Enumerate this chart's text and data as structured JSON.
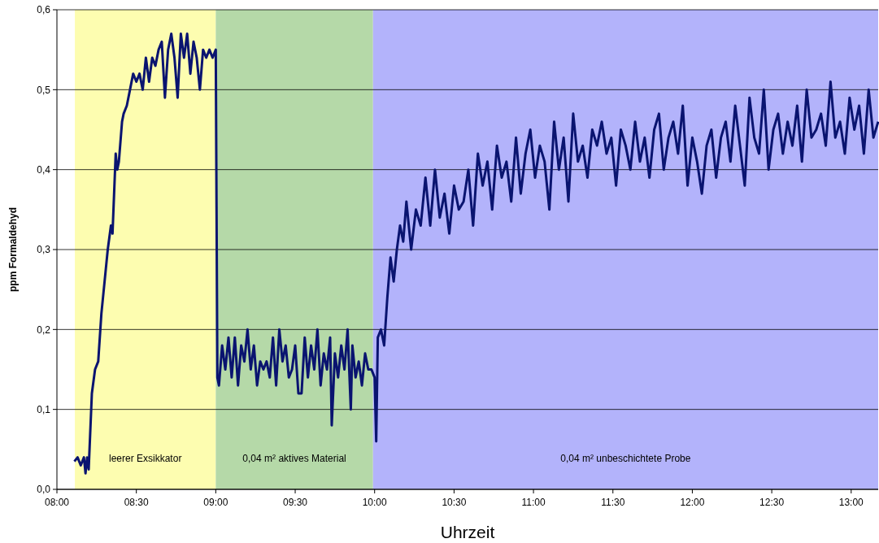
{
  "chart_data": {
    "type": "line",
    "xlabel": "Uhrzeit",
    "ylabel": "ppm Formaldehyd",
    "xlim": [
      8,
      13.17
    ],
    "ylim": [
      0,
      0.6
    ],
    "xticks": [
      {
        "value": 8,
        "label": "08:00"
      },
      {
        "value": 8.5,
        "label": "08:30"
      },
      {
        "value": 9,
        "label": "09:00"
      },
      {
        "value": 9.5,
        "label": "09:30"
      },
      {
        "value": 10,
        "label": "10:00"
      },
      {
        "value": 10.5,
        "label": "10:30"
      },
      {
        "value": 11,
        "label": "11:00"
      },
      {
        "value": 11.5,
        "label": "11:30"
      },
      {
        "value": 12,
        "label": "12:00"
      },
      {
        "value": 12.5,
        "label": "12:30"
      },
      {
        "value": 13,
        "label": "13:00"
      }
    ],
    "yticks": [
      {
        "value": 0,
        "label": "0,0"
      },
      {
        "value": 0.1,
        "label": "0,1"
      },
      {
        "value": 0.2,
        "label": "0,2"
      },
      {
        "value": 0.3,
        "label": "0,3"
      },
      {
        "value": 0.4,
        "label": "0,4"
      },
      {
        "value": 0.5,
        "label": "0,5"
      },
      {
        "value": 0.6,
        "label": "0,6"
      }
    ],
    "grid": "y",
    "bands": [
      {
        "axis": "x",
        "from": 8.113,
        "to": 9.0,
        "label": "leerer Exsikkator",
        "color": "#fdfdb0"
      },
      {
        "axis": "x",
        "from": 9.0,
        "to": 9.99,
        "label": "0,04 m² aktives Material",
        "color": "#b5d9a8"
      },
      {
        "axis": "x",
        "from": 9.99,
        "to": 13.17,
        "label": "0,04 m² unbeschichtete Probe",
        "color": "#b3b3fb"
      }
    ],
    "series": [
      {
        "color": "#0a1470",
        "x": [
          8.11,
          8.13,
          8.15,
          8.17,
          8.18,
          8.19,
          8.2,
          8.22,
          8.24,
          8.26,
          8.28,
          8.3,
          8.32,
          8.34,
          8.35,
          8.37,
          8.38,
          8.39,
          8.41,
          8.42,
          8.44,
          8.46,
          8.48,
          8.5,
          8.52,
          8.54,
          8.56,
          8.58,
          8.6,
          8.62,
          8.64,
          8.66,
          8.68,
          8.7,
          8.72,
          8.74,
          8.76,
          8.78,
          8.8,
          8.82,
          8.84,
          8.86,
          8.88,
          8.9,
          8.92,
          8.94,
          8.96,
          8.98,
          9.0,
          9.01,
          9.02,
          9.04,
          9.06,
          9.08,
          9.1,
          9.12,
          9.14,
          9.16,
          9.18,
          9.2,
          9.22,
          9.24,
          9.26,
          9.28,
          9.3,
          9.32,
          9.34,
          9.36,
          9.38,
          9.4,
          9.42,
          9.44,
          9.46,
          9.48,
          9.5,
          9.52,
          9.54,
          9.56,
          9.58,
          9.6,
          9.62,
          9.64,
          9.66,
          9.68,
          9.7,
          9.72,
          9.73,
          9.75,
          9.77,
          9.79,
          9.81,
          9.83,
          9.85,
          9.86,
          9.88,
          9.9,
          9.92,
          9.94,
          9.96,
          9.98,
          10.0,
          10.01,
          10.02,
          10.04,
          10.06,
          10.08,
          10.1,
          10.12,
          10.14,
          10.16,
          10.18,
          10.2,
          10.23,
          10.26,
          10.29,
          10.32,
          10.35,
          10.38,
          10.41,
          10.44,
          10.47,
          10.5,
          10.53,
          10.56,
          10.59,
          10.62,
          10.65,
          10.68,
          10.71,
          10.74,
          10.77,
          10.8,
          10.83,
          10.86,
          10.89,
          10.92,
          10.95,
          10.98,
          11.01,
          11.04,
          11.07,
          11.1,
          11.13,
          11.16,
          11.19,
          11.22,
          11.25,
          11.28,
          11.31,
          11.34,
          11.37,
          11.4,
          11.43,
          11.46,
          11.49,
          11.52,
          11.55,
          11.58,
          11.61,
          11.64,
          11.67,
          11.7,
          11.73,
          11.76,
          11.79,
          11.82,
          11.85,
          11.88,
          11.91,
          11.94,
          11.97,
          12.0,
          12.03,
          12.06,
          12.09,
          12.12,
          12.15,
          12.18,
          12.21,
          12.24,
          12.27,
          12.3,
          12.33,
          12.36,
          12.39,
          12.42,
          12.45,
          12.48,
          12.51,
          12.54,
          12.57,
          12.6,
          12.63,
          12.66,
          12.69,
          12.72,
          12.75,
          12.78,
          12.81,
          12.84,
          12.87,
          12.9,
          12.93,
          12.96,
          12.99,
          13.02,
          13.05,
          13.08,
          13.11,
          13.14,
          13.17
        ],
        "values": [
          0.035,
          0.04,
          0.03,
          0.04,
          0.02,
          0.04,
          0.025,
          0.12,
          0.15,
          0.16,
          0.22,
          0.26,
          0.3,
          0.33,
          0.32,
          0.42,
          0.4,
          0.41,
          0.46,
          0.47,
          0.48,
          0.5,
          0.52,
          0.51,
          0.52,
          0.5,
          0.54,
          0.51,
          0.54,
          0.53,
          0.55,
          0.56,
          0.49,
          0.55,
          0.57,
          0.54,
          0.49,
          0.57,
          0.54,
          0.57,
          0.52,
          0.56,
          0.54,
          0.5,
          0.55,
          0.54,
          0.55,
          0.54,
          0.55,
          0.14,
          0.13,
          0.18,
          0.15,
          0.19,
          0.14,
          0.19,
          0.13,
          0.18,
          0.16,
          0.2,
          0.15,
          0.18,
          0.13,
          0.16,
          0.15,
          0.16,
          0.14,
          0.19,
          0.13,
          0.2,
          0.16,
          0.18,
          0.14,
          0.15,
          0.18,
          0.12,
          0.12,
          0.19,
          0.14,
          0.18,
          0.15,
          0.2,
          0.13,
          0.17,
          0.15,
          0.19,
          0.08,
          0.17,
          0.14,
          0.18,
          0.15,
          0.2,
          0.1,
          0.18,
          0.14,
          0.16,
          0.13,
          0.17,
          0.15,
          0.15,
          0.14,
          0.06,
          0.19,
          0.2,
          0.18,
          0.24,
          0.29,
          0.26,
          0.3,
          0.33,
          0.31,
          0.36,
          0.3,
          0.35,
          0.33,
          0.39,
          0.33,
          0.4,
          0.34,
          0.37,
          0.32,
          0.38,
          0.35,
          0.36,
          0.4,
          0.33,
          0.42,
          0.38,
          0.41,
          0.35,
          0.43,
          0.39,
          0.41,
          0.36,
          0.44,
          0.37,
          0.42,
          0.45,
          0.39,
          0.43,
          0.41,
          0.35,
          0.46,
          0.4,
          0.44,
          0.36,
          0.47,
          0.41,
          0.43,
          0.39,
          0.45,
          0.43,
          0.46,
          0.42,
          0.44,
          0.38,
          0.45,
          0.43,
          0.4,
          0.46,
          0.41,
          0.44,
          0.39,
          0.45,
          0.47,
          0.4,
          0.44,
          0.46,
          0.42,
          0.48,
          0.38,
          0.44,
          0.41,
          0.37,
          0.43,
          0.45,
          0.39,
          0.44,
          0.46,
          0.41,
          0.48,
          0.43,
          0.38,
          0.49,
          0.44,
          0.42,
          0.5,
          0.4,
          0.45,
          0.47,
          0.42,
          0.46,
          0.43,
          0.48,
          0.41,
          0.5,
          0.44,
          0.45,
          0.47,
          0.43,
          0.51,
          0.44,
          0.46,
          0.42,
          0.49,
          0.45,
          0.48,
          0.42,
          0.5,
          0.44,
          0.46
        ]
      }
    ]
  }
}
